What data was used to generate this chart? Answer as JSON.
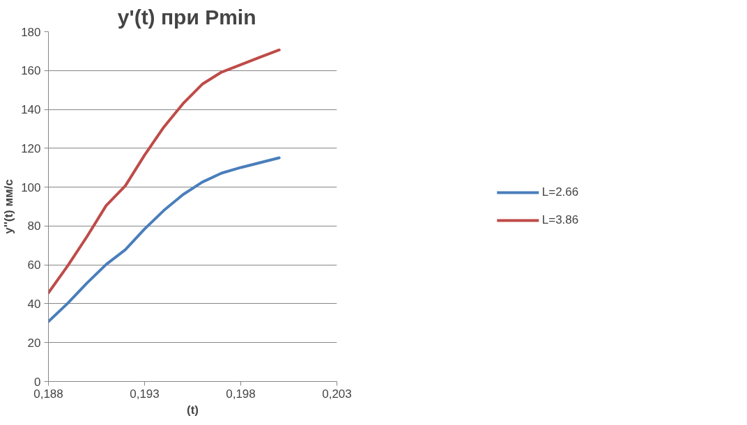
{
  "chart_data": {
    "type": "line",
    "title": "y'(t)  при  Pmin",
    "xlabel": "(t)",
    "ylabel": "y''(t) мм/с",
    "x": [
      0.188,
      0.189,
      0.19,
      0.191,
      0.192,
      0.193,
      0.194,
      0.195,
      0.196,
      0.197,
      0.198,
      0.199,
      0.2
    ],
    "series": [
      {
        "name": "L=2.66",
        "color": "#4a7ebb",
        "values": [
          30.8,
          40.2,
          50.6,
          60.2,
          67.8,
          78.5,
          88.0,
          96.2,
          102.6,
          107.2,
          110.1,
          112.6,
          115.1
        ]
      },
      {
        "name": "L=3.86",
        "color": "#be4b48",
        "values": [
          45.6,
          59.5,
          74.5,
          90.5,
          100.7,
          116.5,
          130.9,
          143.0,
          153.0,
          159.2,
          163.0,
          166.9,
          170.6
        ]
      }
    ],
    "xlim": [
      0.188,
      0.203
    ],
    "xticks": [
      {
        "value": 0.188,
        "label": "0,188"
      },
      {
        "value": 0.193,
        "label": "0,193"
      },
      {
        "value": 0.198,
        "label": "0,198"
      },
      {
        "value": 0.203,
        "label": "0,203"
      }
    ],
    "ylim": [
      0,
      180
    ],
    "yticks": [
      0,
      20,
      40,
      60,
      80,
      100,
      120,
      140,
      160,
      180
    ],
    "grid": "y",
    "legend": "right",
    "marker": "none",
    "line_style": "solid"
  }
}
